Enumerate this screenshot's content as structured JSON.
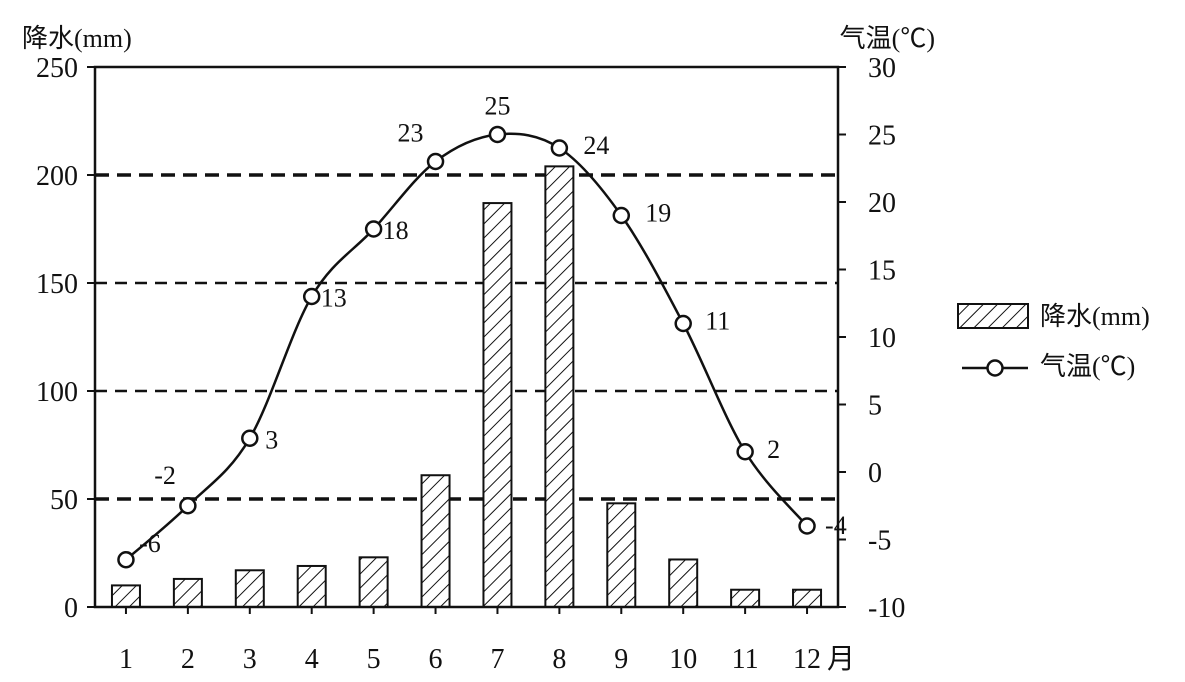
{
  "chart_data": {
    "type": "bar+line",
    "categories": [
      "1",
      "2",
      "3",
      "4",
      "5",
      "6",
      "7",
      "8",
      "9",
      "10",
      "11",
      "12"
    ],
    "x_unit": "月",
    "series": [
      {
        "name": "降水(mm)",
        "type": "bar",
        "axis": "left",
        "values": [
          10,
          13,
          17,
          19,
          23,
          61,
          187,
          204,
          48,
          22,
          8,
          8
        ]
      },
      {
        "name": "气温(℃)",
        "type": "line",
        "axis": "right",
        "values": [
          -6.5,
          -2.5,
          2.5,
          13,
          18,
          23,
          25,
          24,
          19,
          11,
          1.5,
          -4
        ],
        "labels": [
          "-6",
          "-2",
          "3",
          "13",
          "18",
          "23",
          "25",
          "24",
          "19",
          "11",
          "2",
          "-4"
        ]
      }
    ],
    "y_left": {
      "label": "降水(mm)",
      "range": [
        0,
        250
      ],
      "ticks": [
        "0",
        "50",
        "100",
        "150",
        "200",
        "250"
      ]
    },
    "y_right": {
      "label": "气温(℃)",
      "range": [
        -10,
        30
      ],
      "ticks": [
        "-10",
        "-5",
        "0",
        "5",
        "10",
        "15",
        "20",
        "25",
        "30"
      ]
    },
    "gridlines_left_values": [
      50,
      100,
      150,
      200
    ],
    "legend": {
      "position": "right",
      "entries": [
        "降水(mm)",
        "气温(℃)"
      ]
    }
  }
}
